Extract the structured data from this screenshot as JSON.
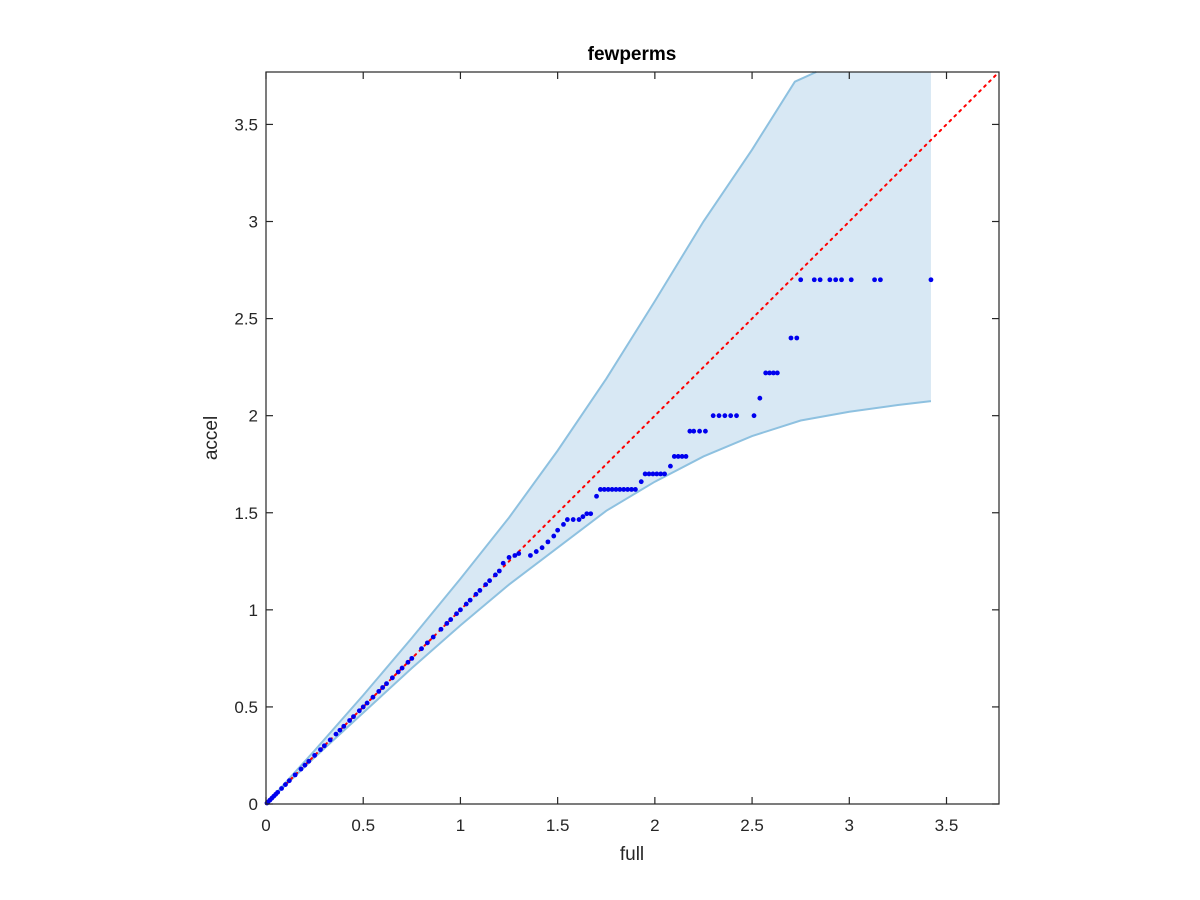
{
  "chart_data": {
    "type": "scatter",
    "title": "fewperms",
    "xlabel": "full",
    "ylabel": "accel",
    "xlim": [
      0,
      3.77
    ],
    "ylim": [
      0,
      3.77
    ],
    "xticks": [
      0,
      0.5,
      1,
      1.5,
      2,
      2.5,
      3,
      3.5
    ],
    "yticks": [
      0,
      0.5,
      1,
      1.5,
      2,
      2.5,
      3,
      3.5
    ],
    "xtick_labels": [
      "0",
      "0.5",
      "1",
      "1.5",
      "2",
      "2.5",
      "3",
      "3.5"
    ],
    "ytick_labels": [
      "0",
      "0.5",
      "1",
      "1.5",
      "2",
      "2.5",
      "3",
      "3.5"
    ],
    "grid": false,
    "box": true,
    "colors": {
      "band_fill": "#d8e8f4",
      "band_edge": "#8ec1e0",
      "points": "#0000ee",
      "diagonal": "#ff0000",
      "axes": "#262626"
    },
    "diagonal": {
      "style": "dotted",
      "from": [
        0,
        0
      ],
      "to": [
        3.77,
        3.77
      ]
    },
    "band": {
      "upper": [
        [
          0,
          0
        ],
        [
          0.25,
          0.275
        ],
        [
          0.5,
          0.56
        ],
        [
          0.75,
          0.855
        ],
        [
          1,
          1.16
        ],
        [
          1.25,
          1.475
        ],
        [
          1.5,
          1.82
        ],
        [
          1.75,
          2.19
        ],
        [
          2,
          2.59
        ],
        [
          2.25,
          3.0
        ],
        [
          2.5,
          3.37
        ],
        [
          2.72,
          3.72
        ],
        [
          2.83,
          3.77
        ]
      ],
      "right_edge_x": 3.42,
      "lower": [
        [
          0,
          0
        ],
        [
          0.25,
          0.24
        ],
        [
          0.5,
          0.47
        ],
        [
          0.75,
          0.7
        ],
        [
          1,
          0.92
        ],
        [
          1.25,
          1.13
        ],
        [
          1.5,
          1.32
        ],
        [
          1.75,
          1.51
        ],
        [
          2,
          1.66
        ],
        [
          2.25,
          1.79
        ],
        [
          2.5,
          1.895
        ],
        [
          2.75,
          1.975
        ],
        [
          3,
          2.02
        ],
        [
          3.25,
          2.055
        ],
        [
          3.42,
          2.075
        ]
      ]
    },
    "series": [
      {
        "points": [
          [
            0.005,
            0.005
          ],
          [
            0.01,
            0.01
          ],
          [
            0.02,
            0.02
          ],
          [
            0.03,
            0.03
          ],
          [
            0.04,
            0.04
          ],
          [
            0.05,
            0.05
          ],
          [
            0.06,
            0.06
          ],
          [
            0.08,
            0.08
          ],
          [
            0.1,
            0.1
          ],
          [
            0.12,
            0.12
          ],
          [
            0.15,
            0.15
          ],
          [
            0.18,
            0.18
          ],
          [
            0.2,
            0.2
          ],
          [
            0.22,
            0.22
          ],
          [
            0.25,
            0.25
          ],
          [
            0.28,
            0.28
          ],
          [
            0.3,
            0.3
          ],
          [
            0.33,
            0.33
          ],
          [
            0.36,
            0.36
          ],
          [
            0.38,
            0.38
          ],
          [
            0.4,
            0.4
          ],
          [
            0.43,
            0.43
          ],
          [
            0.45,
            0.45
          ],
          [
            0.48,
            0.48
          ],
          [
            0.5,
            0.5
          ],
          [
            0.52,
            0.52
          ],
          [
            0.55,
            0.55
          ],
          [
            0.58,
            0.58
          ],
          [
            0.6,
            0.6
          ],
          [
            0.62,
            0.62
          ],
          [
            0.65,
            0.65
          ],
          [
            0.68,
            0.68
          ],
          [
            0.7,
            0.7
          ],
          [
            0.73,
            0.73
          ],
          [
            0.75,
            0.75
          ],
          [
            0.8,
            0.8
          ],
          [
            0.83,
            0.83
          ],
          [
            0.86,
            0.86
          ],
          [
            0.9,
            0.9
          ],
          [
            0.93,
            0.93
          ],
          [
            0.95,
            0.95
          ],
          [
            0.98,
            0.98
          ],
          [
            1.0,
            1.0
          ],
          [
            1.03,
            1.03
          ],
          [
            1.05,
            1.05
          ],
          [
            1.08,
            1.08
          ],
          [
            1.1,
            1.1
          ],
          [
            1.13,
            1.13
          ],
          [
            1.15,
            1.15
          ],
          [
            1.18,
            1.18
          ],
          [
            1.2,
            1.2
          ],
          [
            1.22,
            1.24
          ],
          [
            1.25,
            1.27
          ],
          [
            1.28,
            1.28
          ],
          [
            1.3,
            1.29
          ],
          [
            1.36,
            1.28
          ],
          [
            1.39,
            1.3
          ],
          [
            1.42,
            1.32
          ],
          [
            1.45,
            1.35
          ],
          [
            1.48,
            1.38
          ],
          [
            1.5,
            1.41
          ],
          [
            1.53,
            1.44
          ],
          [
            1.55,
            1.465
          ],
          [
            1.58,
            1.465
          ],
          [
            1.61,
            1.465
          ],
          [
            1.63,
            1.48
          ],
          [
            1.65,
            1.495
          ],
          [
            1.67,
            1.495
          ],
          [
            1.7,
            1.585
          ],
          [
            1.72,
            1.62
          ],
          [
            1.74,
            1.62
          ],
          [
            1.76,
            1.62
          ],
          [
            1.78,
            1.62
          ],
          [
            1.8,
            1.62
          ],
          [
            1.82,
            1.62
          ],
          [
            1.84,
            1.62
          ],
          [
            1.86,
            1.62
          ],
          [
            1.88,
            1.62
          ],
          [
            1.9,
            1.62
          ],
          [
            1.93,
            1.66
          ],
          [
            1.95,
            1.7
          ],
          [
            1.97,
            1.7
          ],
          [
            1.99,
            1.7
          ],
          [
            2.01,
            1.7
          ],
          [
            2.03,
            1.7
          ],
          [
            2.05,
            1.7
          ],
          [
            2.08,
            1.74
          ],
          [
            2.1,
            1.79
          ],
          [
            2.12,
            1.79
          ],
          [
            2.14,
            1.79
          ],
          [
            2.16,
            1.79
          ],
          [
            2.18,
            1.92
          ],
          [
            2.2,
            1.92
          ],
          [
            2.23,
            1.92
          ],
          [
            2.26,
            1.92
          ],
          [
            2.3,
            2.0
          ],
          [
            2.33,
            2.0
          ],
          [
            2.36,
            2.0
          ],
          [
            2.39,
            2.0
          ],
          [
            2.42,
            2.0
          ],
          [
            2.51,
            2.0
          ],
          [
            2.54,
            2.09
          ],
          [
            2.57,
            2.22
          ],
          [
            2.59,
            2.22
          ],
          [
            2.61,
            2.22
          ],
          [
            2.63,
            2.22
          ],
          [
            2.7,
            2.4
          ],
          [
            2.73,
            2.4
          ],
          [
            2.75,
            2.7
          ],
          [
            2.82,
            2.7
          ],
          [
            2.85,
            2.7
          ],
          [
            2.9,
            2.7
          ],
          [
            2.93,
            2.7
          ],
          [
            2.96,
            2.7
          ],
          [
            3.01,
            2.7
          ],
          [
            3.13,
            2.7
          ],
          [
            3.16,
            2.7
          ],
          [
            3.42,
            2.7
          ]
        ]
      }
    ]
  }
}
